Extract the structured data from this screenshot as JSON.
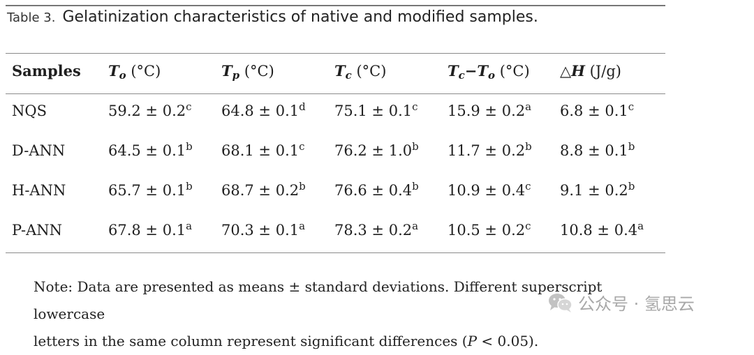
{
  "caption": {
    "label": "Table 3.",
    "title": "Gelatinization characteristics of native and modified samples."
  },
  "table": {
    "headers": {
      "samples": "Samples",
      "to": {
        "sym": "T",
        "sub": "o",
        "unit": " (°C)"
      },
      "tp": {
        "sym": "T",
        "sub": "p",
        "unit": " (°C)"
      },
      "tc": {
        "sym": "T",
        "sub": "c",
        "unit": " (°C)"
      },
      "tc_to": {
        "sym1": "T",
        "sub1": "c",
        "dash": "−",
        "sym2": "T",
        "sub2": "o",
        "unit": " (°C)"
      },
      "dh": {
        "sym": "△H",
        "unit": " (J/g)"
      }
    },
    "rows": [
      {
        "sample": "NQS",
        "to": {
          "v": "59.2 ± 0.2",
          "s": "c"
        },
        "tp": {
          "v": "64.8 ± 0.1",
          "s": "d"
        },
        "tc": {
          "v": "75.1 ± 0.1",
          "s": "c"
        },
        "tc_to": {
          "v": "15.9 ± 0.2",
          "s": "a"
        },
        "dh": {
          "v": "6.8 ± 0.1",
          "s": "c"
        }
      },
      {
        "sample": "D-ANN",
        "to": {
          "v": "64.5 ± 0.1",
          "s": "b"
        },
        "tp": {
          "v": "68.1 ± 0.1",
          "s": "c"
        },
        "tc": {
          "v": "76.2 ± 1.0",
          "s": "b"
        },
        "tc_to": {
          "v": "11.7 ± 0.2",
          "s": "b"
        },
        "dh": {
          "v": "8.8 ± 0.1",
          "s": "b"
        }
      },
      {
        "sample": "H-ANN",
        "to": {
          "v": "65.7 ± 0.1",
          "s": "b"
        },
        "tp": {
          "v": "68.7 ± 0.2",
          "s": "b"
        },
        "tc": {
          "v": "76.6 ± 0.4",
          "s": "b"
        },
        "tc_to": {
          "v": "10.9 ± 0.4",
          "s": "c"
        },
        "dh": {
          "v": "9.1 ± 0.2",
          "s": "b"
        }
      },
      {
        "sample": "P-ANN",
        "to": {
          "v": "67.8 ± 0.1",
          "s": "a"
        },
        "tp": {
          "v": "70.3 ± 0.1",
          "s": "a"
        },
        "tc": {
          "v": "78.3 ± 0.2",
          "s": "a"
        },
        "tc_to": {
          "v": "10.5 ± 0.2",
          "s": "c"
        },
        "dh": {
          "v": "10.8 ± 0.4",
          "s": "a"
        }
      }
    ]
  },
  "note": {
    "line1": "Note: Data are presented as means ± standard deviations. Different superscript lowercase",
    "line2_pre": "letters in the same column represent significant differences (",
    "line2_p": "P",
    "line2_post": " < 0.05)."
  },
  "watermark": {
    "text": "公众号 · 氢思云",
    "icon": "wechat-icon"
  }
}
